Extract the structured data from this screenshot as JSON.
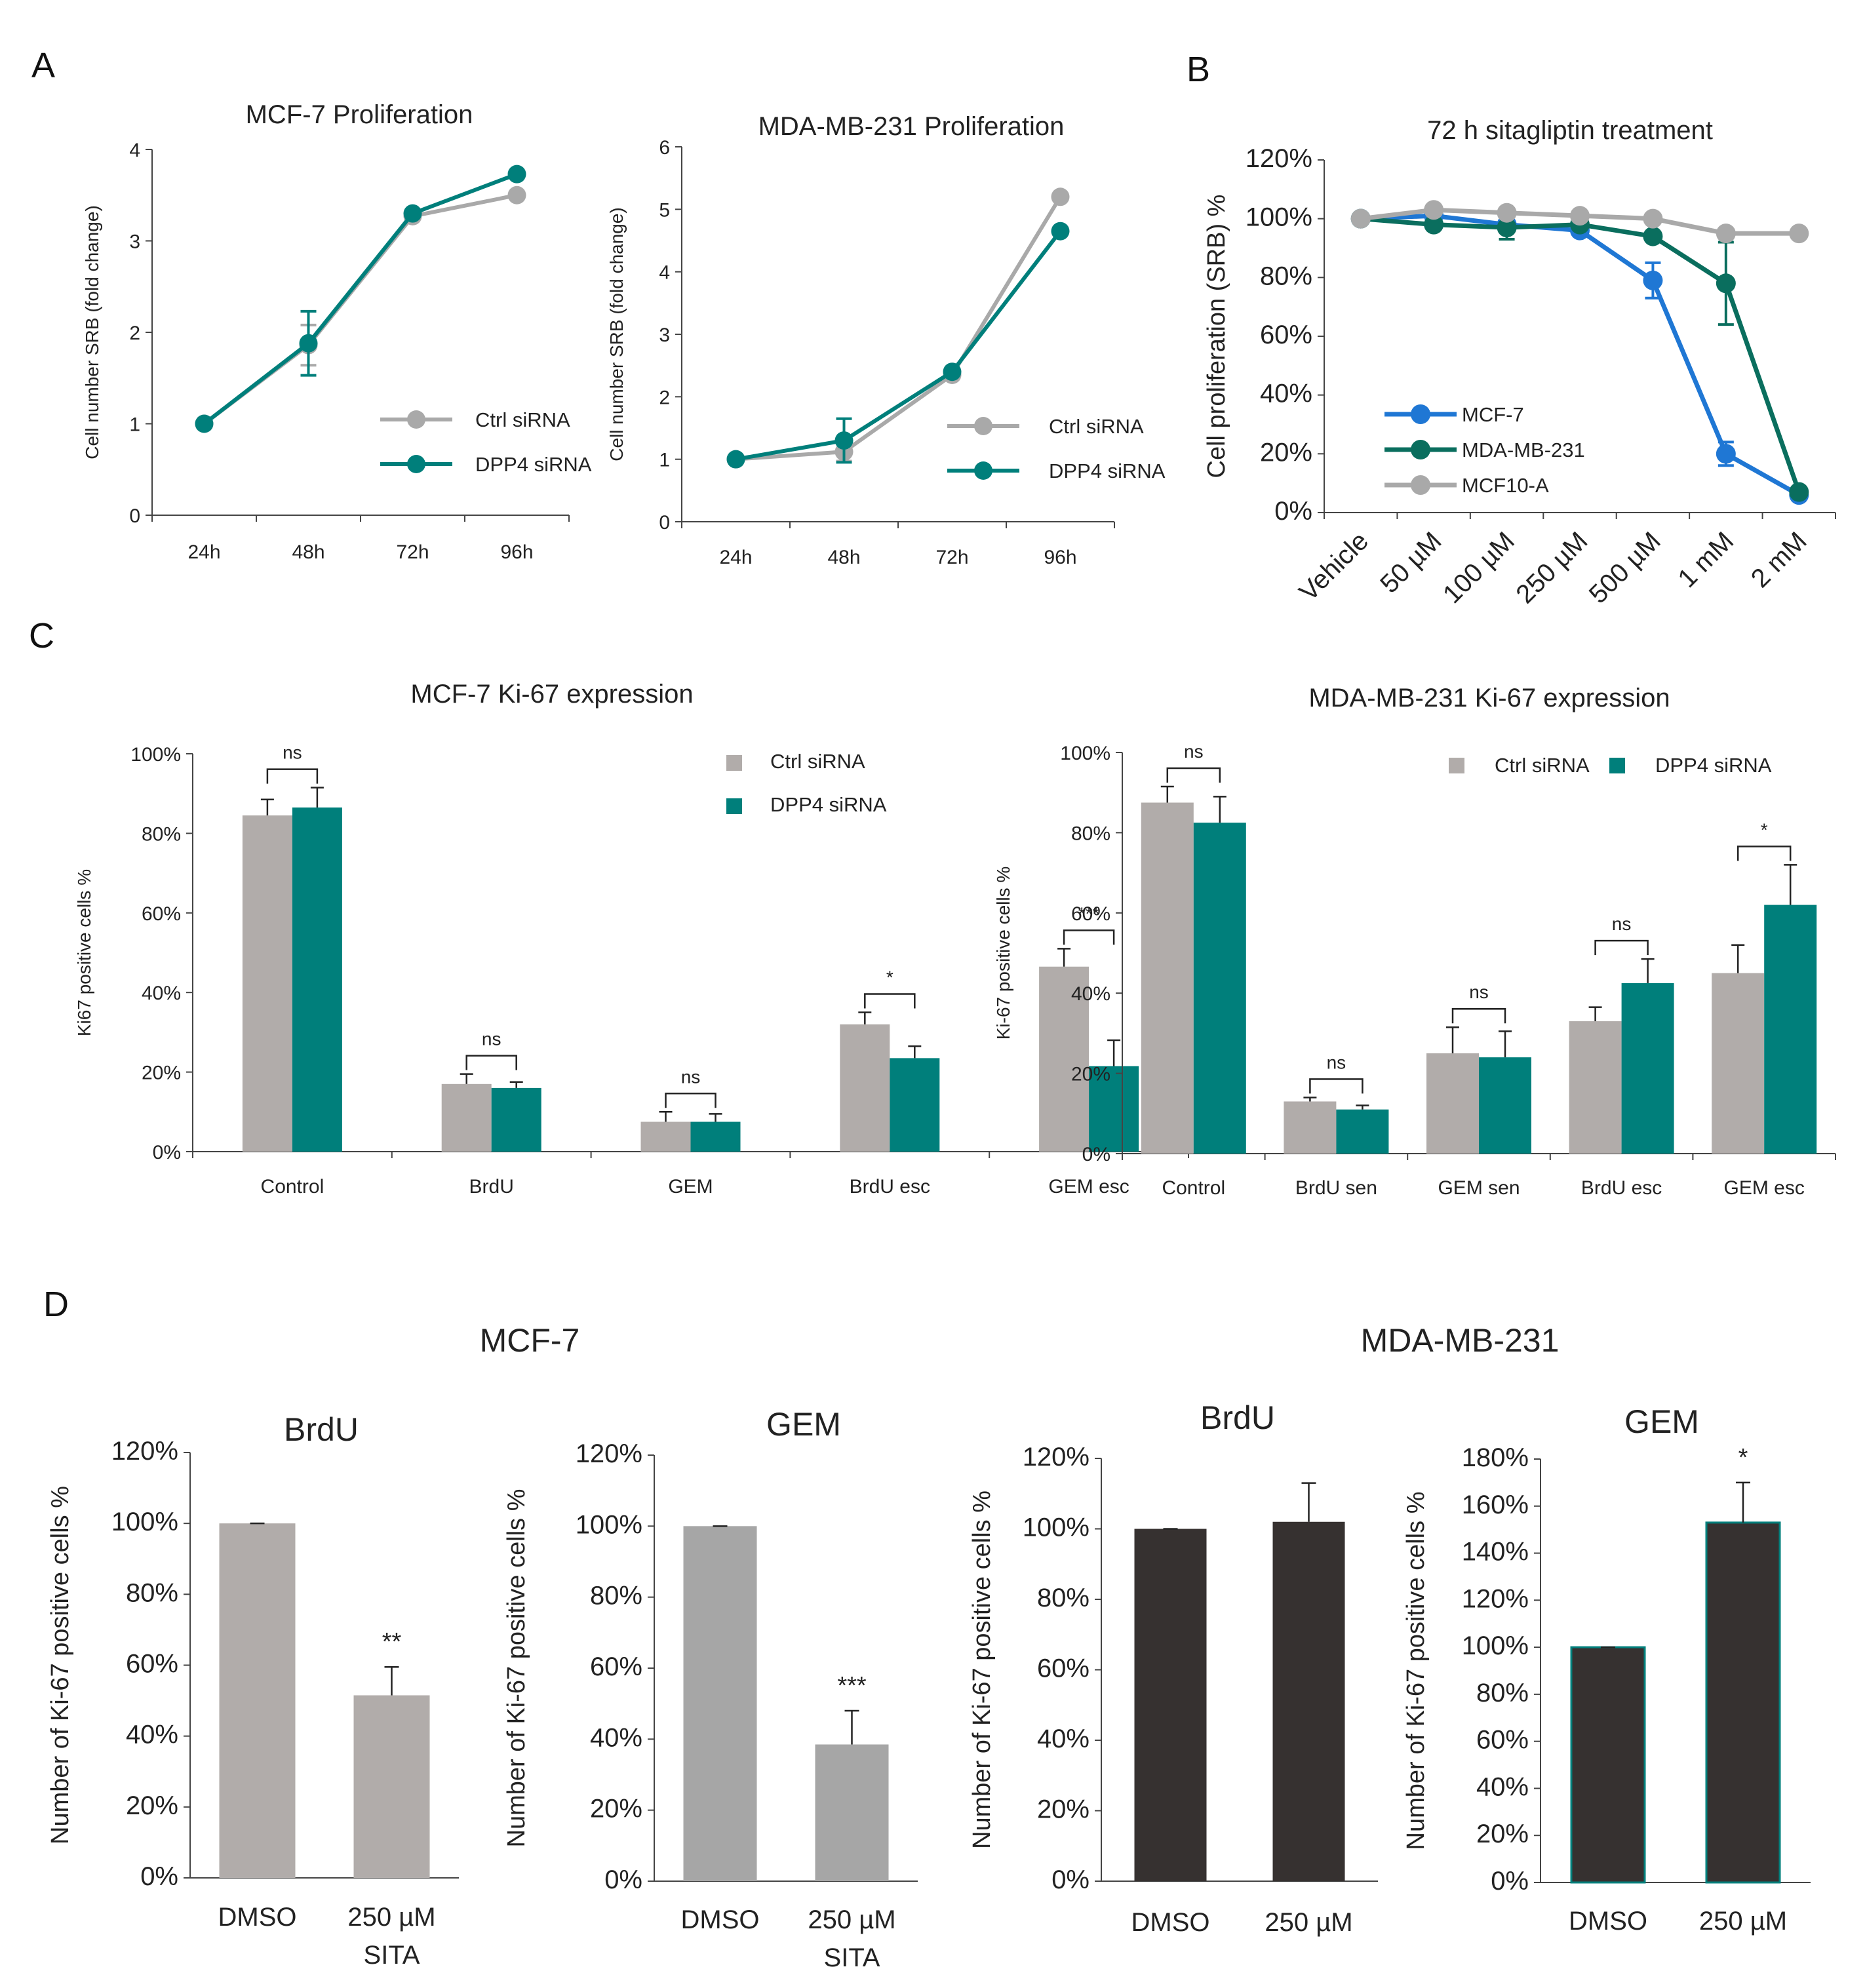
{
  "panel_letters": {
    "A": "A",
    "B": "B",
    "C": "C",
    "D": "D"
  },
  "panel_d_groups": {
    "left": "MCF-7",
    "right": "MDA-MB-231"
  },
  "colors": {
    "grey": "#a9a9a9",
    "teal": "#007f7b",
    "blue": "#1f77d4",
    "dark_teal": "#0a6e5e",
    "bar_grey": "#b1acaa",
    "bar_grey2": "#a6a6a6",
    "dark": "#363130"
  },
  "chart_data": [
    {
      "id": "a1",
      "type": "line",
      "title": "MCF-7 Proliferation",
      "xlabel": "",
      "ylabel": "Cell number SRB (fold change)",
      "categories": [
        "24h",
        "48h",
        "72h",
        "96h"
      ],
      "ylim": [
        0,
        4
      ],
      "yticks": [
        "0",
        "1",
        "2",
        "3",
        "4"
      ],
      "legend_position": "bottom-right",
      "series": [
        {
          "name": "Ctrl siRNA",
          "color": "#a9a9a9",
          "values": [
            1.0,
            1.86,
            3.27,
            3.5
          ],
          "errors": [
            0,
            0.22,
            0,
            0
          ]
        },
        {
          "name": "DPP4 siRNA",
          "color": "#007f7b",
          "values": [
            1.0,
            1.88,
            3.3,
            3.73
          ],
          "errors": [
            0,
            0.35,
            0,
            0
          ]
        }
      ]
    },
    {
      "id": "a2",
      "type": "line",
      "title": "MDA-MB-231 Proliferation",
      "xlabel": "",
      "ylabel": "Cell number SRB (fold change)",
      "categories": [
        "24h",
        "48h",
        "72h",
        "96h"
      ],
      "ylim": [
        0,
        6
      ],
      "yticks": [
        "0",
        "1",
        "2",
        "3",
        "4",
        "5",
        "6"
      ],
      "legend_position": "bottom-right",
      "series": [
        {
          "name": "Ctrl siRNA",
          "color": "#a9a9a9",
          "values": [
            1.0,
            1.12,
            2.35,
            5.2
          ],
          "errors": [
            0,
            0.15,
            0,
            0
          ]
        },
        {
          "name": "DPP4 siRNA",
          "color": "#007f7b",
          "values": [
            1.0,
            1.3,
            2.4,
            4.65
          ],
          "errors": [
            0,
            0.35,
            0,
            0
          ]
        }
      ]
    },
    {
      "id": "b",
      "type": "line",
      "title": "72 h sitagliptin treatment",
      "xlabel": "",
      "ylabel": "Cell proliferation (SRB) %",
      "categories": [
        "Vehicle",
        "50 µM",
        "100 µM",
        "250 µM",
        "500 µM",
        "1 mM",
        "2 mM"
      ],
      "ylim": [
        0,
        120
      ],
      "yticks": [
        "0%",
        "20%",
        "40%",
        "60%",
        "80%",
        "100%",
        "120%"
      ],
      "legend_position": "bottom-left",
      "series": [
        {
          "name": "MCF-7",
          "color": "#1f77d4",
          "values": [
            100,
            101,
            98,
            96,
            79,
            20,
            6
          ],
          "errors": [
            0,
            0,
            0,
            0,
            6,
            4,
            0
          ]
        },
        {
          "name": "MDA-MB-231",
          "color": "#0a6e5e",
          "values": [
            100,
            98,
            97,
            98,
            94,
            78,
            7
          ],
          "errors": [
            0,
            0,
            4,
            0,
            0,
            14,
            0
          ]
        },
        {
          "name": "MCF10-A",
          "color": "#a9a9a9",
          "values": [
            100,
            103,
            102,
            101,
            100,
            95,
            95
          ],
          "errors": [
            0,
            0,
            0,
            0,
            0,
            0,
            0
          ]
        }
      ]
    },
    {
      "id": "c1",
      "type": "bar",
      "title": "MCF-7 Ki-67 expression",
      "xlabel": "",
      "ylabel": "Ki67 positive cells %",
      "categories": [
        "Control",
        "BrdU",
        "GEM",
        "BrdU esc",
        "GEM esc"
      ],
      "ylim": [
        0,
        100
      ],
      "yticks": [
        "0%",
        "20%",
        "40%",
        "60%",
        "80%",
        "100%"
      ],
      "legend_position": "top-right",
      "series": [
        {
          "name": "Ctrl siRNA",
          "color": "#b1acaa",
          "values": [
            84.5,
            17,
            7.5,
            32,
            46.5
          ],
          "errors": [
            4,
            2.5,
            2.5,
            3,
            4.5
          ]
        },
        {
          "name": "DPP4 siRNA",
          "color": "#007f7b",
          "values": [
            86.5,
            16,
            7.5,
            23.5,
            21.5
          ],
          "errors": [
            5,
            1.5,
            2,
            3,
            6.5
          ]
        }
      ],
      "significance": [
        "ns",
        "ns",
        "ns",
        "*",
        "***"
      ]
    },
    {
      "id": "c2",
      "type": "bar",
      "title": "MDA-MB-231 Ki-67 expression",
      "xlabel": "",
      "ylabel": "Ki-67 positive cells %",
      "categories": [
        "Control",
        "BrdU sen",
        "GEM sen",
        "BrdU esc",
        "GEM esc"
      ],
      "ylim": [
        0,
        100
      ],
      "yticks": [
        "0%",
        "20%",
        "40%",
        "60%",
        "80%",
        "100%"
      ],
      "legend_position": "top-right",
      "series": [
        {
          "name": "Ctrl siRNA",
          "color": "#b1acaa",
          "values": [
            87.5,
            13,
            25,
            33,
            45
          ],
          "errors": [
            4,
            1,
            6.5,
            3.5,
            7
          ]
        },
        {
          "name": "DPP4 siRNA",
          "color": "#007f7b",
          "values": [
            82.5,
            11,
            24,
            42.5,
            62
          ],
          "errors": [
            6.5,
            1,
            6.5,
            6,
            10
          ]
        }
      ],
      "significance": [
        "ns",
        "ns",
        "ns",
        "ns",
        "*"
      ]
    },
    {
      "id": "d1",
      "type": "bar",
      "title": "BrdU",
      "xlabel": "",
      "ylabel": "Number of Ki-67 positive cells %",
      "categories": [
        "DMSO",
        "250 µM SITA"
      ],
      "ylim": [
        0,
        120
      ],
      "yticks": [
        "0%",
        "20%",
        "40%",
        "60%",
        "80%",
        "100%",
        "120%"
      ],
      "bar_color": "#b1acaa",
      "values": [
        100,
        51.5
      ],
      "errors": [
        0,
        8
      ],
      "significance": [
        "",
        "**"
      ]
    },
    {
      "id": "d2",
      "type": "bar",
      "title": "GEM",
      "xlabel": "",
      "ylabel": "Number of Ki-67 positive cells %",
      "categories": [
        "DMSO",
        "250 µM SITA"
      ],
      "ylim": [
        0,
        120
      ],
      "yticks": [
        "0%",
        "20%",
        "40%",
        "60%",
        "80%",
        "100%",
        "120%"
      ],
      "bar_color": "#a6a6a6",
      "values": [
        100,
        38.5
      ],
      "errors": [
        0,
        9.5
      ],
      "significance": [
        "",
        "***"
      ]
    },
    {
      "id": "d3",
      "type": "bar",
      "title": "BrdU",
      "xlabel": "",
      "ylabel": "Number of Ki-67 positive cells %",
      "categories": [
        "DMSO",
        "250 µM"
      ],
      "ylim": [
        0,
        120
      ],
      "yticks": [
        "0%",
        "20%",
        "40%",
        "60%",
        "80%",
        "100%",
        "120%"
      ],
      "bar_color": "#363130",
      "values": [
        100,
        102
      ],
      "errors": [
        0,
        11
      ],
      "significance": [
        "",
        ""
      ]
    },
    {
      "id": "d4",
      "type": "bar",
      "title": "GEM",
      "xlabel": "",
      "ylabel": "Number of Ki-67 positive cells %",
      "categories": [
        "DMSO",
        "250 µM"
      ],
      "ylim": [
        0,
        180
      ],
      "yticks": [
        "0%",
        "20%",
        "40%",
        "60%",
        "80%",
        "100%",
        "120%",
        "140%",
        "160%",
        "180%"
      ],
      "bar_color": "#363130",
      "values": [
        100,
        153
      ],
      "errors": [
        0,
        17
      ],
      "significance": [
        "",
        "*"
      ]
    }
  ]
}
